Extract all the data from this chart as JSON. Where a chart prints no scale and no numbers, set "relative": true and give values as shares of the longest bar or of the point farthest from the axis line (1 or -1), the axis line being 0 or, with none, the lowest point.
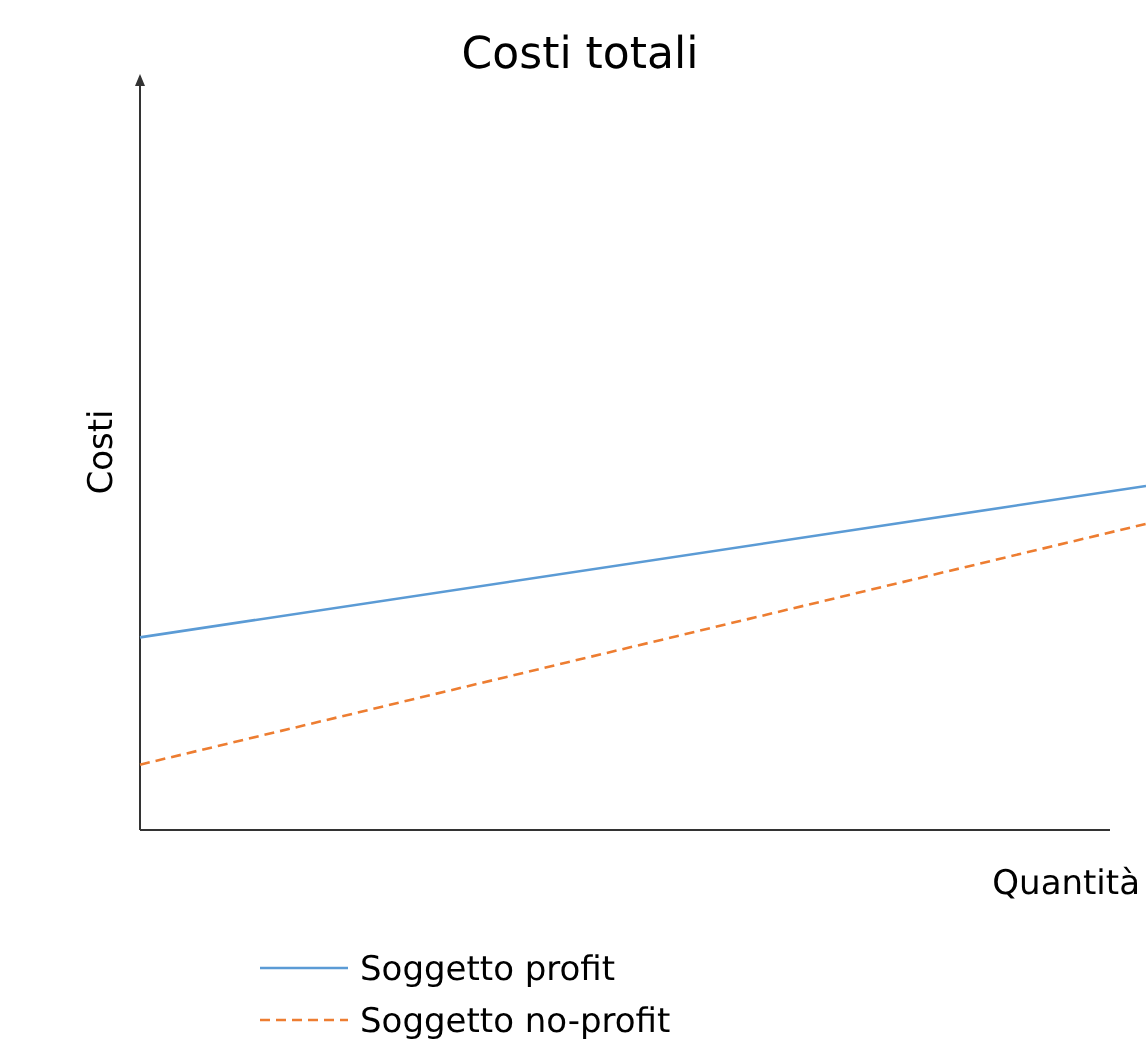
{
  "chart_data": {
    "type": "line",
    "title": "Costi totali",
    "xlabel": "Quantità",
    "ylabel": "Costi",
    "relative": true,
    "categories": [
      null,
      null
    ],
    "legend": "bottom",
    "series": [
      {
        "name": "Soggetto profit",
        "color": "#5b9bd5",
        "values": [
          0.56,
          1
        ],
        "line_style": "solid"
      },
      {
        "name": "Soggetto no-profit",
        "color": "#ed7d31",
        "values": [
          0.19,
          0.89
        ],
        "line_style": "dashed"
      }
    ]
  }
}
